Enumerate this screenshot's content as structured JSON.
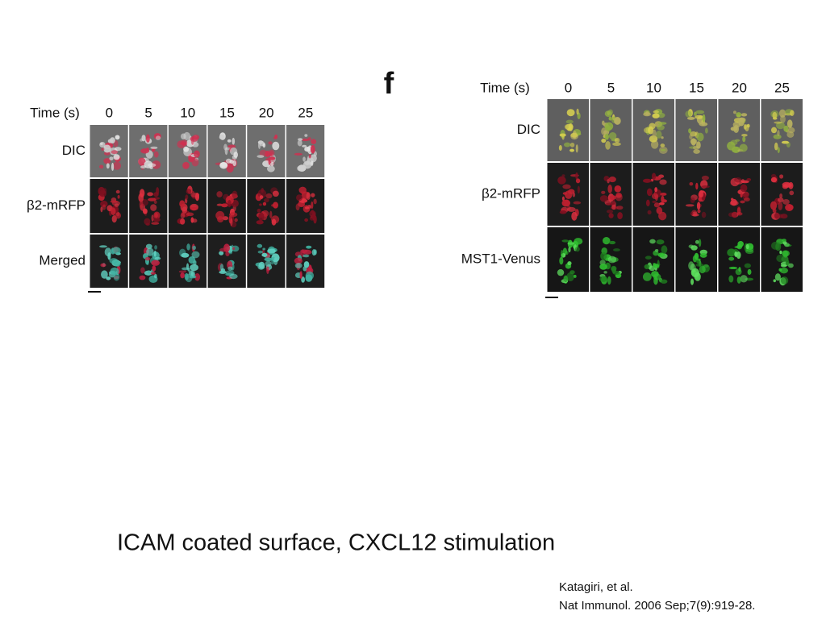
{
  "left_panel": {
    "time_header": "Time (s)",
    "times": [
      "0",
      "5",
      "10",
      "15",
      "20",
      "25"
    ],
    "rows": [
      "DIC",
      "β2-mRFP",
      "Merged"
    ]
  },
  "right_panel": {
    "panel_label": "f",
    "time_header": "Time (s)",
    "times": [
      "0",
      "5",
      "10",
      "15",
      "20",
      "25"
    ],
    "rows": [
      "DIC",
      "β2-mRFP",
      "MST1-Venus"
    ]
  },
  "caption": "ICAM coated surface, CXCL12 stimulation",
  "citation": {
    "authors": "Katagiri, et al.",
    "reference": "Nat Immunol. 2006 Sep;7(9):919-28."
  }
}
